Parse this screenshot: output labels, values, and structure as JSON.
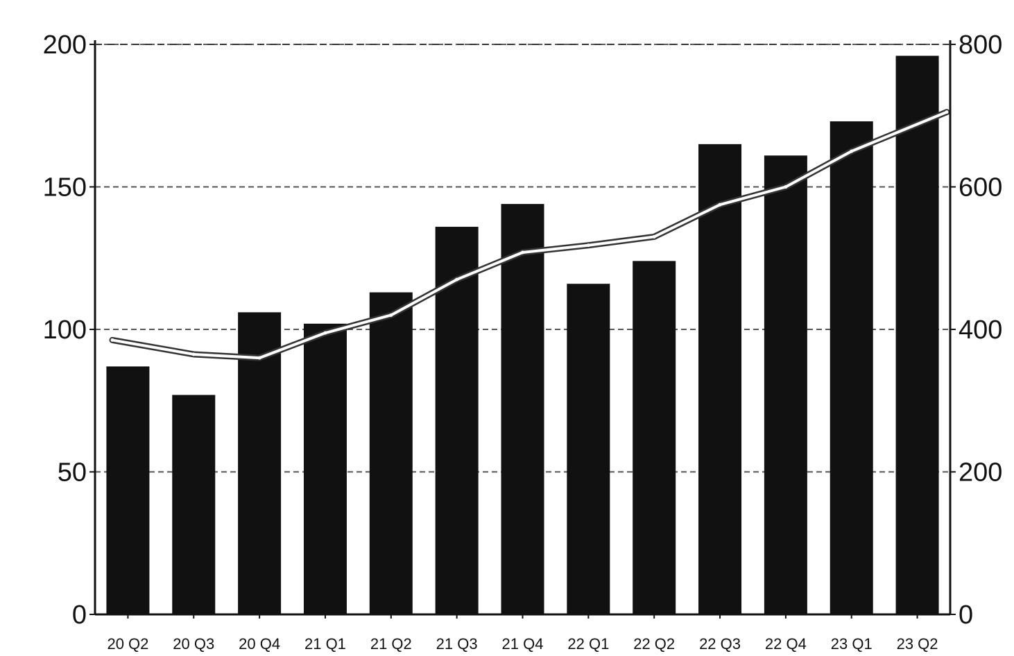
{
  "chart_data": {
    "type": "bar",
    "title": "",
    "xlabel": "",
    "ylabel": "",
    "categories": [
      "20 Q2",
      "20 Q3",
      "20 Q4",
      "21 Q1",
      "21 Q2",
      "21 Q3",
      "21 Q4",
      "22 Q1",
      "22 Q2",
      "22 Q3",
      "22 Q4",
      "23 Q1",
      "23 Q2"
    ],
    "series": [
      {
        "type": "bar",
        "axis": "left",
        "values": [
          87,
          77,
          106,
          102,
          113,
          136,
          144,
          116,
          124,
          165,
          161,
          173,
          196
        ]
      },
      {
        "type": "line",
        "axis": "right",
        "values": [
          385,
          365,
          360,
          395,
          420,
          470,
          508,
          518,
          530,
          575,
          600,
          650,
          705
        ]
      }
    ],
    "ylim": [
      0,
      200
    ],
    "y2lim": [
      0,
      800
    ],
    "yticks": [
      0,
      50,
      100,
      150,
      200
    ],
    "y2ticks": [
      0,
      200,
      400,
      600,
      800
    ],
    "grid": true,
    "colors": {
      "bars": "#111111",
      "line": "#ffffff",
      "line_outline": "#333333",
      "grid": "#555555"
    }
  }
}
